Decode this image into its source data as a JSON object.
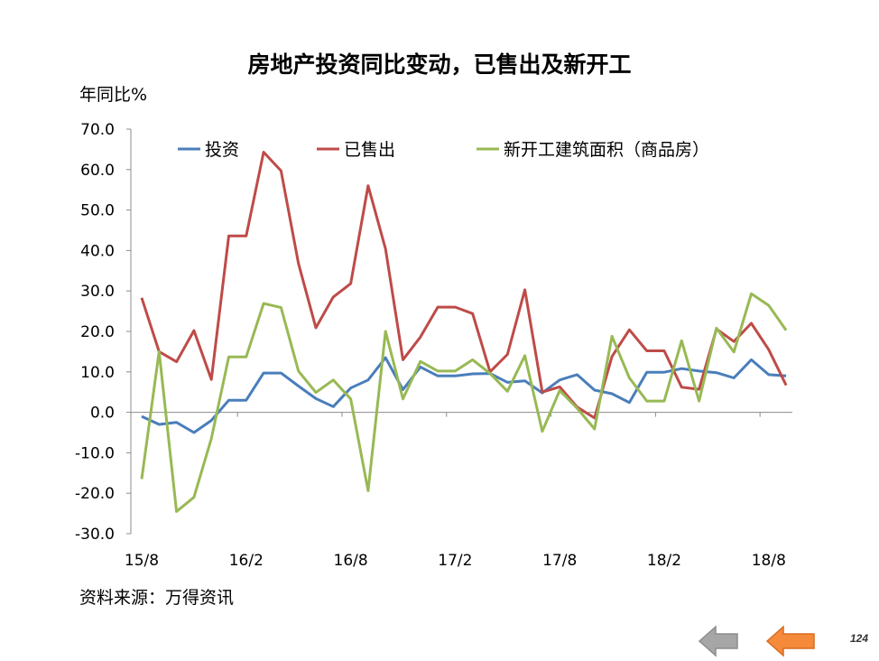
{
  "title": "房地产投资同比变动，已售出及新开工",
  "unit_label": "年同比%",
  "source": "资料来源：万得资讯",
  "page_number": "124",
  "nav": {
    "prev_icon": "arrow-left-icon",
    "next_icon": "arrow-left-icon"
  },
  "chart_data": {
    "type": "line",
    "title": "房地产投资同比变动，已售出及新开工",
    "ylabel": "年同比%",
    "ylim": [
      -30,
      70
    ],
    "yticks": [
      -30,
      -20,
      -10,
      0,
      10,
      20,
      30,
      40,
      50,
      60,
      70
    ],
    "ytick_labels": [
      "-30.0",
      "-20.0",
      "-10.0",
      "0.0",
      "10.0",
      "20.0",
      "30.0",
      "40.0",
      "50.0",
      "60.0",
      "70.0"
    ],
    "xtick_labels": [
      "15/8",
      "16/2",
      "16/8",
      "17/2",
      "17/8",
      "18/2",
      "18/8"
    ],
    "x": [
      "15/8",
      "15/9",
      "15/10",
      "15/11",
      "15/12",
      "16/1",
      "16/2",
      "16/3",
      "16/4",
      "16/5",
      "16/6",
      "16/7",
      "16/8",
      "16/9",
      "16/10",
      "16/11",
      "16/12",
      "17/1",
      "17/2",
      "17/3",
      "17/4",
      "17/5",
      "17/6",
      "17/7",
      "17/8",
      "17/9",
      "17/10",
      "17/11",
      "17/12",
      "18/1",
      "18/2",
      "18/3",
      "18/4",
      "18/5",
      "18/6",
      "18/7",
      "18/8",
      "18/9"
    ],
    "legend_position": "top",
    "grid": false,
    "series": [
      {
        "name": "投资",
        "color": "#4a7ebb",
        "values": [
          -1.0,
          -3.0,
          -2.5,
          -5.0,
          -2.0,
          3.0,
          3.0,
          9.7,
          9.7,
          6.5,
          3.4,
          1.4,
          6.0,
          8.0,
          13.5,
          5.6,
          11.2,
          9.0,
          9.0,
          9.5,
          9.6,
          7.4,
          7.8,
          4.8,
          8.0,
          9.3,
          5.5,
          4.6,
          2.4,
          9.9,
          9.9,
          10.8,
          10.2,
          9.8,
          8.5,
          13.0,
          9.3,
          9.0
        ]
      },
      {
        "name": "已售出",
        "color": "#be4b48",
        "values": [
          28.3,
          15.0,
          12.5,
          20.2,
          8.1,
          43.6,
          43.6,
          64.3,
          59.7,
          36.8,
          20.9,
          28.5,
          31.8,
          56.0,
          40.4,
          13.0,
          18.6,
          26.0,
          26.0,
          24.4,
          10.0,
          14.3,
          30.3,
          5.0,
          6.3,
          1.3,
          -1.4,
          13.8,
          20.4,
          15.2,
          15.2,
          6.2,
          5.7,
          20.6,
          17.5,
          22.0,
          15.5,
          6.7
        ]
      },
      {
        "name": "新开工建筑面积（商品房）",
        "color": "#98b954",
        "values": [
          -16.5,
          15.0,
          -24.5,
          -21.0,
          -6.5,
          13.7,
          13.7,
          26.9,
          25.9,
          10.2,
          4.9,
          8.0,
          3.3,
          -19.4,
          20.0,
          3.3,
          12.6,
          10.2,
          10.2,
          13.0,
          9.6,
          5.2,
          14.0,
          -4.7,
          5.4,
          1.0,
          -4.1,
          18.8,
          8.5,
          2.8,
          2.8,
          17.7,
          2.8,
          20.8,
          14.9,
          29.3,
          26.4,
          20.3
        ]
      }
    ]
  }
}
